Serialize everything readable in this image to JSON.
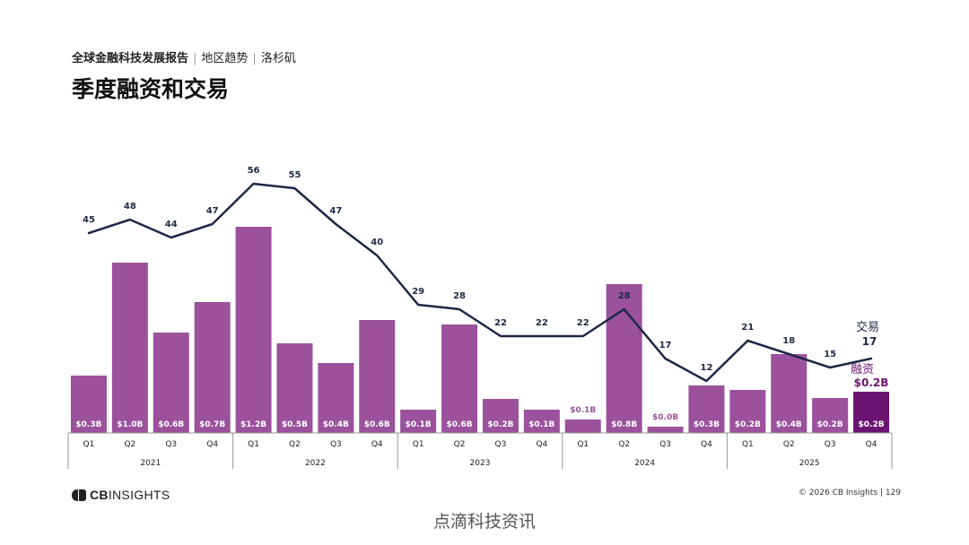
{
  "header": {
    "report": "全球金融科技发展报告",
    "region_trends": "地区趋势",
    "city": "洛杉矶"
  },
  "title": "季度融资和交易",
  "chart_data": {
    "type": "bar",
    "categories": [
      "Q1",
      "Q2",
      "Q3",
      "Q4",
      "Q1",
      "Q2",
      "Q3",
      "Q4",
      "Q1",
      "Q2",
      "Q3",
      "Q4",
      "Q1",
      "Q2",
      "Q3",
      "Q4",
      "Q1",
      "Q2",
      "Q3",
      "Q4"
    ],
    "years": [
      "2021",
      "2022",
      "2023",
      "2024",
      "2025"
    ],
    "series": [
      {
        "name": "融资",
        "kind": "bar",
        "values": [
          0.3,
          1.0,
          0.6,
          0.7,
          1.2,
          0.5,
          0.4,
          0.6,
          0.1,
          0.6,
          0.2,
          0.1,
          0.1,
          0.8,
          0.0,
          0.3,
          0.2,
          0.4,
          0.2,
          0.2
        ],
        "labels": [
          "$0.3B",
          "$1.0B",
          "$0.6B",
          "$0.7B",
          "$1.2B",
          "$0.5B",
          "$0.4B",
          "$0.6B",
          "$0.1B",
          "$0.6B",
          "$0.2B",
          "$0.1B",
          "$0.1B",
          "$0.8B",
          "$0.0B",
          "$0.3B",
          "$0.2B",
          "$0.4B",
          "$0.2B",
          "$0.2B"
        ],
        "bar_heights_rel": [
          64,
          190,
          112,
          146,
          230,
          100,
          78,
          126,
          26,
          121,
          38,
          26,
          15,
          166,
          7,
          53,
          48,
          88,
          39,
          46
        ],
        "color": "#9b519c",
        "highlight_color": "#6b1470"
      },
      {
        "name": "交易",
        "kind": "line",
        "values": [
          45,
          48,
          44,
          47,
          56,
          55,
          47,
          40,
          29,
          28,
          22,
          22,
          22,
          28,
          17,
          12,
          21,
          18,
          15,
          17
        ],
        "color": "#1d2746"
      }
    ],
    "legend_line_label": "交易",
    "legend_line_value": "17",
    "legend_bar_label": "融资",
    "legend_bar_value": "$0.2B",
    "colors": {
      "bar": "#9b519c",
      "bar_last": "#6b1470",
      "line": "#1d2746"
    }
  },
  "footer": {
    "logo_cb": "CB",
    "logo_insights": "INSIGHTS",
    "copyright": "© 2026 CB Insights | 129",
    "watermark": "点滴科技资讯"
  }
}
